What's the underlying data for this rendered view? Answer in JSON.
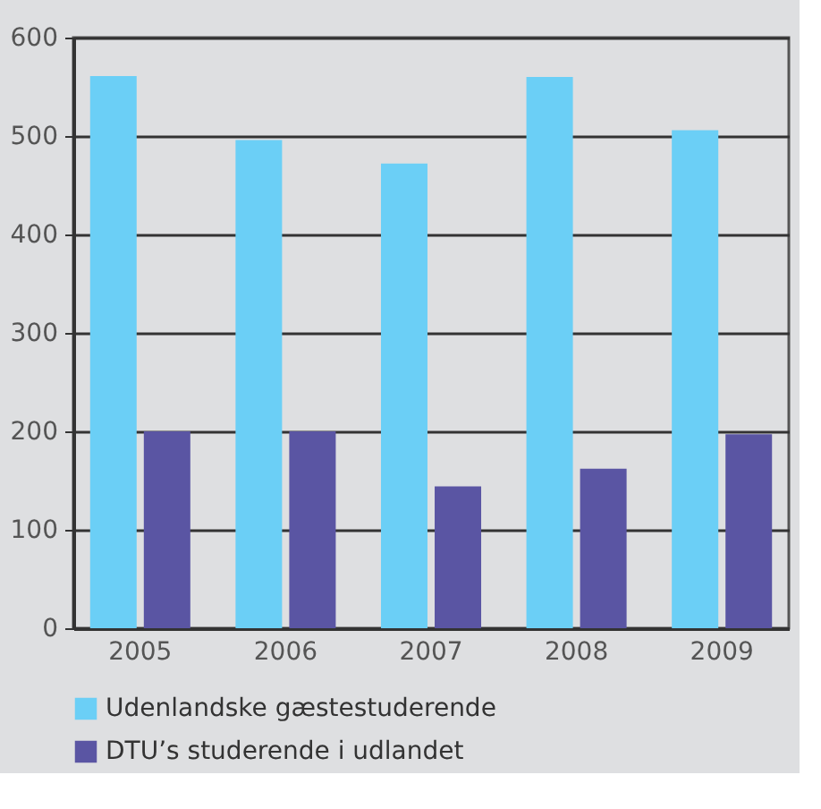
{
  "chart_data": {
    "type": "bar",
    "categories": [
      "2005",
      "2006",
      "2007",
      "2008",
      "2009"
    ],
    "series": [
      {
        "name": "Udenlandske gæstestuderende",
        "color": "#6bcff6",
        "values": [
          561,
          496,
          472,
          560,
          506
        ]
      },
      {
        "name": "DTU’s studerende i udlandet",
        "color": "#5a55a3",
        "values": [
          200,
          200,
          144,
          162,
          197
        ]
      }
    ],
    "ylim": [
      0,
      600
    ],
    "yticks": [
      0,
      100,
      200,
      300,
      400,
      500,
      600
    ],
    "grid": "y",
    "legend": "bottom"
  }
}
